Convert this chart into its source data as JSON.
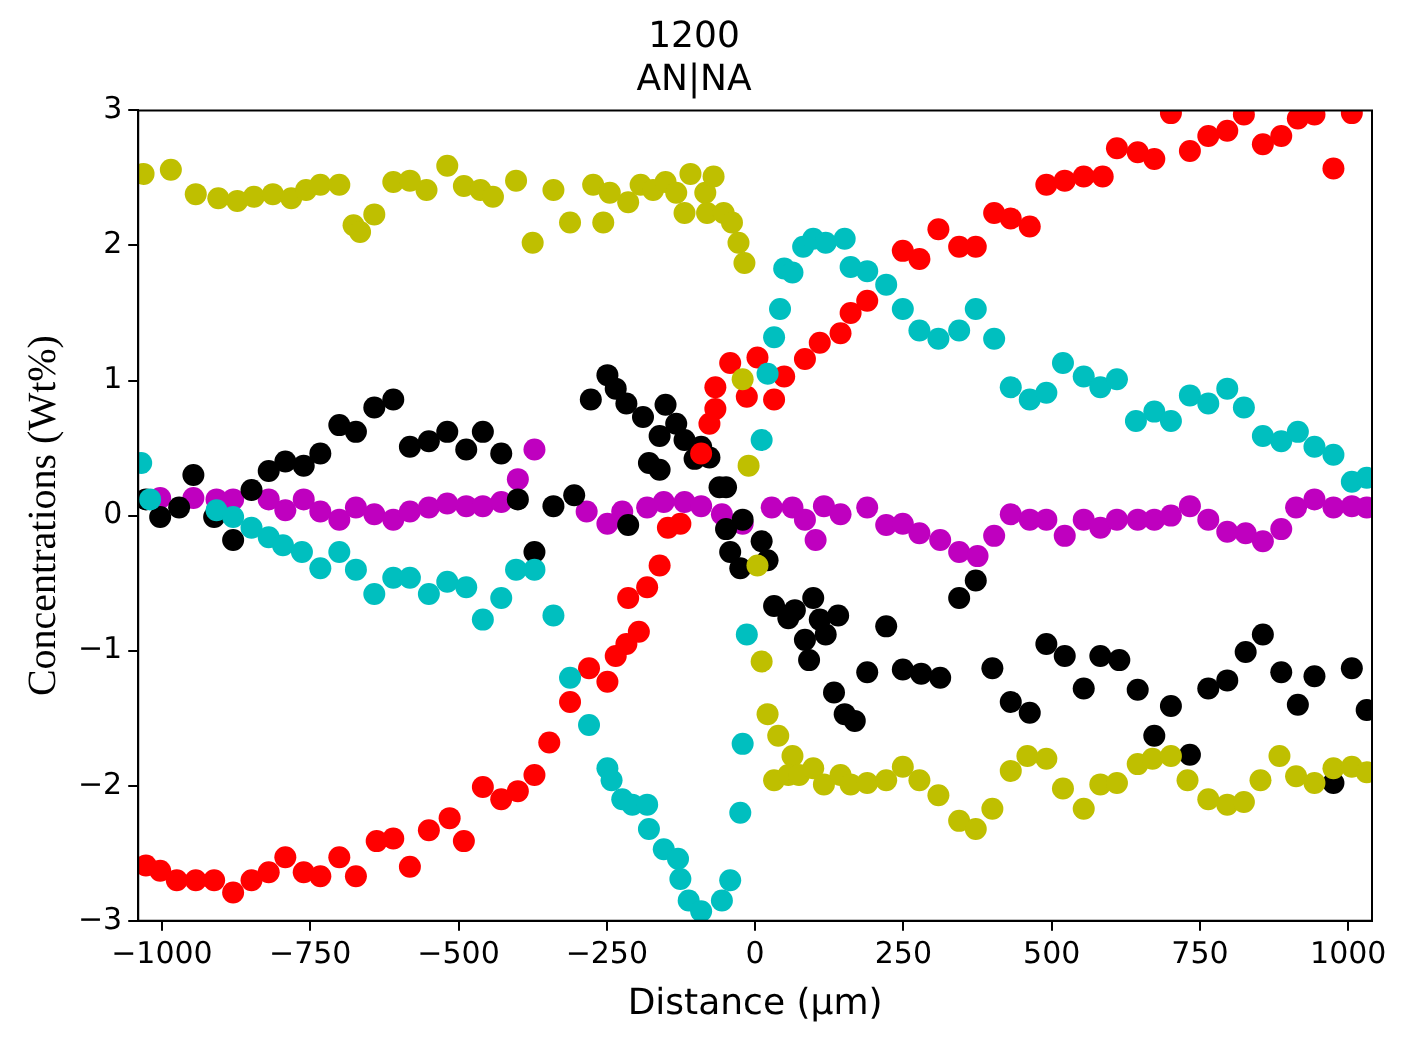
{
  "chart_data": {
    "type": "scatter",
    "title": "1200",
    "subtitle": "AN|NA",
    "xlabel": "Distance (μm)",
    "ylabel": "Concentrations (Wt%)",
    "xlim": [
      -1040,
      1040
    ],
    "ylim": [
      -3,
      3
    ],
    "xticks": [
      {
        "value": -1000,
        "label": "−1000"
      },
      {
        "value": -750,
        "label": "−750"
      },
      {
        "value": -500,
        "label": "−500"
      },
      {
        "value": -250,
        "label": "−250"
      },
      0,
      250,
      500,
      750,
      1000
    ],
    "yticks": [
      {
        "value": -3,
        "label": "−3"
      },
      {
        "value": -2,
        "label": "−2"
      },
      {
        "value": -1,
        "label": "−1"
      },
      0,
      1,
      2,
      3
    ],
    "grid": false,
    "legend": false,
    "marker": "circle",
    "series": [
      {
        "color": "#bfbf00",
        "x": [
          -1031,
          -985,
          -943,
          -905,
          -873,
          -845,
          -813,
          -782,
          -757,
          -733,
          -701,
          -677,
          -666,
          -642,
          -610,
          -582,
          -554,
          -519,
          -491,
          -463,
          -442,
          -403,
          -375,
          -340,
          -312,
          -273,
          -256,
          -245,
          -214,
          -193,
          -172,
          -151,
          -133,
          -119,
          -109,
          -84,
          -81,
          -70,
          -53,
          -39,
          -28,
          -18,
          -21,
          -11,
          4,
          11,
          21,
          39,
          63,
          32,
          56,
          74,
          98,
          116,
          144,
          161,
          189,
          221,
          249,
          277,
          309,
          344,
          372,
          400,
          431,
          459,
          491,
          519,
          554,
          582,
          610,
          645,
          670,
          701,
          729,
          764,
          796,
          824,
          852,
          884,
          912,
          943,
          975,
          1006,
          1031
        ],
        "values": [
          2.53,
          2.56,
          2.38,
          2.35,
          2.33,
          2.36,
          2.38,
          2.35,
          2.41,
          2.45,
          2.45,
          2.15,
          2.1,
          2.23,
          2.47,
          2.48,
          2.41,
          2.59,
          2.44,
          2.41,
          2.36,
          2.48,
          2.02,
          2.41,
          2.17,
          2.45,
          2.17,
          2.39,
          2.32,
          2.45,
          2.41,
          2.47,
          2.39,
          2.24,
          2.53,
          2.39,
          2.24,
          2.51,
          2.24,
          2.17,
          2.02,
          1.87,
          1.01,
          0.37,
          -0.37,
          -1.08,
          -1.47,
          -1.63,
          -1.78,
          -1.96,
          -1.92,
          -1.92,
          -1.87,
          -1.99,
          -1.92,
          -1.99,
          -1.98,
          -1.96,
          -1.86,
          -1.96,
          -2.07,
          -2.26,
          -2.32,
          -2.17,
          -1.89,
          -1.78,
          -1.8,
          -2.02,
          -2.17,
          -1.99,
          -1.98,
          -1.84,
          -1.8,
          -1.78,
          -1.96,
          -2.1,
          -2.14,
          -2.12,
          -1.96,
          -1.78,
          -1.93,
          -1.98,
          -1.87,
          -1.86,
          -1.9
        ]
      },
      {
        "color": "#00bfbf",
        "x": [
          -1035,
          -1020,
          -908,
          -880,
          -849,
          -820,
          -796,
          -764,
          -733,
          -701,
          -673,
          -642,
          -610,
          -582,
          -550,
          -519,
          -487,
          -459,
          -428,
          -403,
          -372,
          -340,
          -312,
          -280,
          -249,
          -242,
          -224,
          -207,
          -182,
          -179,
          -154,
          -130,
          -126,
          -112,
          -91,
          -56,
          -42,
          -25,
          -21,
          -14,
          11,
          21,
          32,
          42,
          49,
          63,
          81,
          98,
          119,
          151,
          161,
          189,
          221,
          249,
          277,
          309,
          344,
          372,
          403,
          431,
          463,
          491,
          519,
          554,
          582,
          610,
          642,
          673,
          701,
          733,
          764,
          796,
          824,
          856,
          887,
          915,
          943,
          975,
          1006,
          1031
        ],
        "values": [
          0.39,
          0.12,
          0.04,
          -0.01,
          -0.09,
          -0.16,
          -0.22,
          -0.27,
          -0.39,
          -0.27,
          -0.4,
          -0.58,
          -0.46,
          -0.46,
          -0.58,
          -0.49,
          -0.53,
          -0.77,
          -0.61,
          -0.4,
          -0.4,
          -0.74,
          -1.2,
          -1.55,
          -1.87,
          -1.96,
          -2.1,
          -2.14,
          -2.14,
          -2.32,
          -2.47,
          -2.54,
          -2.69,
          -2.85,
          -2.93,
          -2.85,
          -2.7,
          -2.2,
          -1.69,
          -0.88,
          0.56,
          1.05,
          1.32,
          1.53,
          1.83,
          1.8,
          1.99,
          2.05,
          2.02,
          2.05,
          1.84,
          1.81,
          1.71,
          1.53,
          1.37,
          1.31,
          1.37,
          1.53,
          1.31,
          0.95,
          0.86,
          0.91,
          1.13,
          1.03,
          0.95,
          1.01,
          0.7,
          0.77,
          0.7,
          0.89,
          0.83,
          0.94,
          0.8,
          0.59,
          0.55,
          0.62,
          0.51,
          0.45,
          0.25,
          0.28
        ]
      },
      {
        "color": "#ff0000",
        "x": [
          -1027,
          -1003,
          -975,
          -943,
          -912,
          -880,
          -849,
          -820,
          -792,
          -761,
          -733,
          -701,
          -673,
          -638,
          -610,
          -582,
          -550,
          -515,
          -491,
          -459,
          -428,
          -400,
          -372,
          -347,
          -312,
          -280,
          -249,
          -235,
          -217,
          -196,
          -214,
          -182,
          -161,
          -147,
          -126,
          -91,
          -77,
          -67,
          -67,
          -42,
          -14,
          4,
          32,
          49,
          84,
          109,
          144,
          161,
          189,
          249,
          277,
          309,
          344,
          372,
          403,
          431,
          463,
          491,
          522,
          554,
          586,
          610,
          645,
          673,
          701,
          733,
          764,
          796,
          824,
          856,
          887,
          915,
          943,
          975,
          1006
        ],
        "values": [
          -2.59,
          -2.63,
          -2.7,
          -2.7,
          -2.7,
          -2.79,
          -2.7,
          -2.64,
          -2.53,
          -2.64,
          -2.67,
          -2.53,
          -2.67,
          -2.41,
          -2.39,
          -2.6,
          -2.33,
          -2.24,
          -2.41,
          -2.01,
          -2.1,
          -2.04,
          -1.92,
          -1.68,
          -1.38,
          -1.13,
          -1.23,
          -1.04,
          -0.95,
          -0.86,
          -0.61,
          -0.53,
          -0.37,
          -0.09,
          -0.06,
          0.46,
          0.68,
          0.79,
          0.95,
          1.13,
          0.88,
          1.17,
          0.86,
          1.03,
          1.16,
          1.28,
          1.35,
          1.5,
          1.59,
          1.96,
          1.9,
          2.12,
          1.99,
          1.99,
          2.24,
          2.2,
          2.14,
          2.45,
          2.48,
          2.51,
          2.51,
          2.72,
          2.69,
          2.64,
          2.98,
          2.7,
          2.81,
          2.85,
          2.97,
          2.75,
          2.81,
          2.94,
          2.97,
          2.57,
          2.98
        ]
      },
      {
        "color": "#000000",
        "x": [
          -1027,
          -1003,
          -971,
          -947,
          -912,
          -880,
          -849,
          -820,
          -792,
          -761,
          -733,
          -701,
          -673,
          -642,
          -610,
          -582,
          -550,
          -519,
          -487,
          -459,
          -428,
          -400,
          -372,
          -340,
          -305,
          -277,
          -249,
          -235,
          -217,
          -189,
          -161,
          -151,
          -133,
          -119,
          -179,
          -161,
          -102,
          -91,
          -77,
          -60,
          -49,
          -214,
          -49,
          -42,
          -25,
          -21,
          11,
          21,
          32,
          56,
          67,
          98,
          109,
          84,
          91,
          119,
          140,
          133,
          151,
          168,
          189,
          221,
          249,
          280,
          312,
          344,
          372,
          400,
          431,
          463,
          491,
          522,
          554,
          582,
          614,
          645,
          673,
          701,
          733,
          764,
          796,
          827,
          856,
          887,
          915,
          943,
          975,
          1006,
          1031
        ],
        "values": [
          0.12,
          -0.01,
          0.06,
          0.3,
          -0.01,
          -0.18,
          0.19,
          0.33,
          0.4,
          0.37,
          0.46,
          0.67,
          0.62,
          0.8,
          0.86,
          0.51,
          0.55,
          0.62,
          0.49,
          0.62,
          0.46,
          0.12,
          -0.27,
          0.07,
          0.15,
          0.86,
          1.04,
          0.94,
          0.83,
          0.73,
          0.59,
          0.82,
          0.68,
          0.56,
          0.39,
          0.34,
          0.42,
          0.51,
          0.43,
          0.21,
          0.21,
          -0.07,
          -0.1,
          -0.27,
          -0.39,
          -0.03,
          -0.19,
          -0.33,
          -0.67,
          -0.76,
          -0.7,
          -0.61,
          -0.77,
          -0.92,
          -1.07,
          -0.88,
          -0.74,
          -1.31,
          -1.47,
          -1.52,
          -1.16,
          -0.82,
          -1.14,
          -1.17,
          -1.2,
          -0.61,
          -0.48,
          -1.13,
          -1.38,
          -1.46,
          -0.95,
          -1.04,
          -1.28,
          -1.04,
          -1.07,
          -1.29,
          -1.63,
          -1.41,
          -1.77,
          -1.28,
          -1.22,
          -1.01,
          -0.88,
          -1.16,
          -1.4,
          -1.19,
          -1.98,
          -1.13,
          -1.44
        ]
      },
      {
        "color": "#bf00bf",
        "x": [
          -1003,
          -947,
          -908,
          -880,
          -820,
          -792,
          -761,
          -733,
          -701,
          -673,
          -642,
          -610,
          -582,
          -550,
          -519,
          -487,
          -459,
          -428,
          -400,
          -372,
          -340,
          -284,
          -249,
          -224,
          -182,
          -154,
          -119,
          -91,
          -56,
          -21,
          28,
          63,
          84,
          102,
          116,
          144,
          189,
          221,
          249,
          277,
          312,
          344,
          375,
          403,
          431,
          463,
          491,
          522,
          554,
          582,
          610,
          645,
          673,
          701,
          733,
          764,
          796,
          827,
          856,
          887,
          912,
          943,
          975,
          1006,
          1031
        ],
        "values": [
          0.13,
          0.13,
          0.12,
          0.12,
          0.12,
          0.04,
          0.12,
          0.03,
          -0.03,
          0.06,
          0.01,
          -0.03,
          0.03,
          0.06,
          0.09,
          0.07,
          0.07,
          0.1,
          0.27,
          0.49,
          null,
          0.03,
          -0.06,
          0.03,
          0.06,
          0.1,
          0.1,
          0.07,
          0.01,
          -0.06,
          0.06,
          0.06,
          -0.03,
          -0.18,
          0.07,
          0.01,
          0.06,
          -0.07,
          -0.06,
          -0.13,
          -0.18,
          -0.27,
          -0.3,
          -0.15,
          0.01,
          -0.03,
          -0.03,
          -0.15,
          -0.03,
          -0.09,
          -0.03,
          -0.03,
          -0.03,
          0,
          0.07,
          -0.03,
          -0.12,
          -0.13,
          -0.19,
          -0.1,
          0.06,
          0.12,
          0.06,
          0.07,
          0.06
        ]
      }
    ]
  }
}
